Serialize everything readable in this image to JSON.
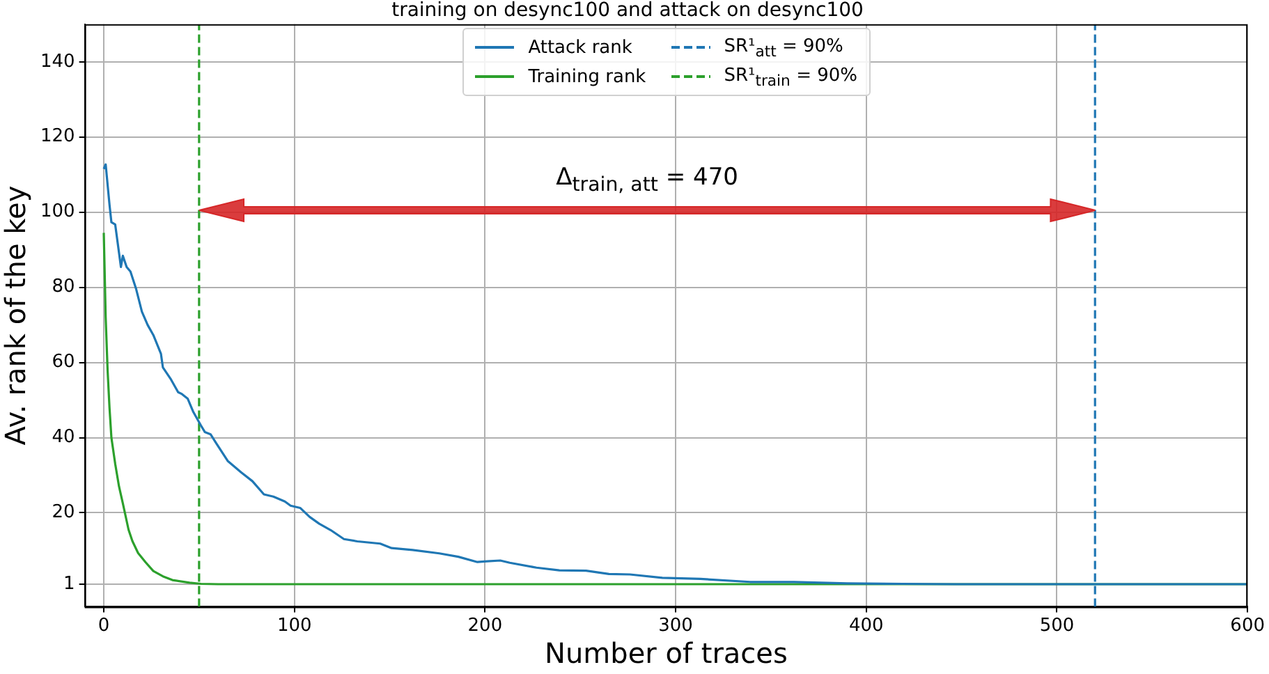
{
  "chart_data": {
    "type": "line",
    "title": "training on desync100 and attack on desync100",
    "xlabel": "Number of traces",
    "ylabel": "Av. rank of the key",
    "xlim": [
      -10,
      600
    ],
    "xticks": [
      0,
      100,
      200,
      300,
      400,
      500,
      600
    ],
    "ylim": [
      -5,
      150
    ],
    "yticks": [
      1,
      20,
      40,
      60,
      80,
      100,
      120,
      140
    ],
    "grid": true,
    "legend": "top",
    "series": [
      {
        "name": "Attack rank",
        "color": "#1f77b4",
        "x": [
          0,
          1,
          3,
          4,
          6,
          9,
          10,
          12,
          14,
          17,
          20,
          23,
          26,
          30,
          31,
          35,
          39,
          41,
          44,
          47,
          51,
          53,
          56,
          59,
          65,
          72,
          78,
          84,
          89,
          95,
          98,
          103,
          108,
          113,
          119,
          126,
          133,
          145,
          151,
          162,
          176,
          186,
          196,
          201,
          208,
          213,
          227,
          239,
          253,
          265,
          276,
          293,
          313,
          339,
          362,
          390,
          419,
          447,
          480,
          600
        ],
        "values": [
          111.5,
          112.7,
          102,
          97.3,
          96.7,
          85.4,
          88.4,
          85.4,
          84.2,
          79.5,
          73.5,
          70,
          67.3,
          62.3,
          58.7,
          55.7,
          52.1,
          51.6,
          50.4,
          46.8,
          43.2,
          41.5,
          40.9,
          38.5,
          33.8,
          30.8,
          28.4,
          24.9,
          24.3,
          23,
          21.9,
          21.3,
          18.9,
          17.1,
          15.4,
          13,
          12.4,
          11.8,
          10.6,
          10.1,
          9.2,
          8.3,
          6.9,
          7.1,
          7.3,
          6.7,
          5.4,
          4.7,
          4.6,
          3.7,
          3.6,
          2.7,
          2.4,
          1.6,
          1.6,
          1.2,
          1.1,
          1,
          1,
          1
        ]
      },
      {
        "name": "Training rank",
        "color": "#2ca02c",
        "x": [
          0,
          1,
          2,
          3,
          4,
          6,
          8,
          10,
          13,
          15,
          18,
          22,
          26,
          31,
          36,
          45,
          51,
          60,
          80,
          600
        ],
        "values": [
          94.5,
          72,
          58,
          48,
          40,
          33,
          27,
          22.5,
          15.5,
          12.5,
          9.3,
          6.8,
          4.5,
          3.1,
          2.1,
          1.4,
          1.1,
          1,
          1,
          1
        ]
      },
      {
        "name": "SR¹$_{att}$ = 90%",
        "color": "#1f77b4",
        "line_style": "dashed",
        "x": [
          520,
          520
        ],
        "values": [
          -5,
          150
        ]
      },
      {
        "name": "SR¹$_{train}$ = 90%",
        "color": "#2ca02c",
        "line_style": "dashed",
        "x": [
          50,
          50
        ],
        "values": [
          -5,
          150
        ]
      }
    ],
    "annotations": [
      "Δ$_{train, att}$ = 470"
    ]
  }
}
